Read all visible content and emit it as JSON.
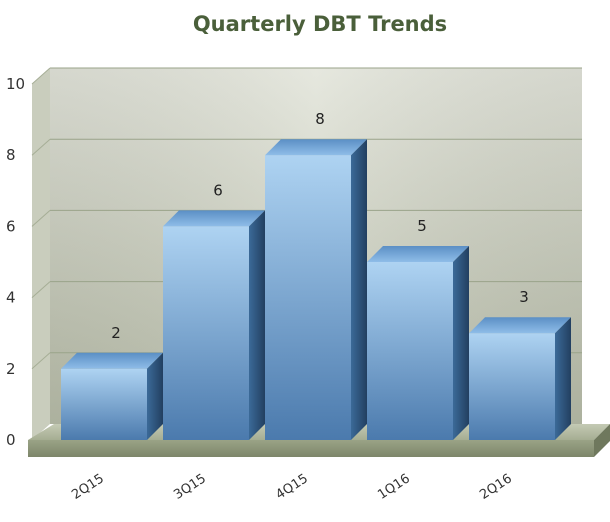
{
  "chart_data": {
    "type": "bar",
    "title": "Quarterly DBT Trends",
    "categories": [
      "2Q15",
      "3Q15",
      "4Q15",
      "1Q16",
      "2Q16"
    ],
    "values": [
      2,
      6,
      8,
      5,
      3
    ],
    "xlabel": "",
    "ylabel": "",
    "ylim": [
      0,
      10
    ],
    "yticks": [
      0,
      2,
      4,
      6,
      8,
      10
    ],
    "grid": true,
    "legend": "none",
    "style": "3d",
    "colors": {
      "bar_front_top": "#a9cff0",
      "bar_front_bottom": "#4f7fb2",
      "bar_top": "#7fb0e0",
      "bar_side": "#2f5a86",
      "wall_light": "#e1e4d9",
      "wall_dark": "#b5baa6",
      "floor": "#a9b199",
      "gridline": "#9aa38a",
      "title": "#4a5f3a"
    }
  }
}
